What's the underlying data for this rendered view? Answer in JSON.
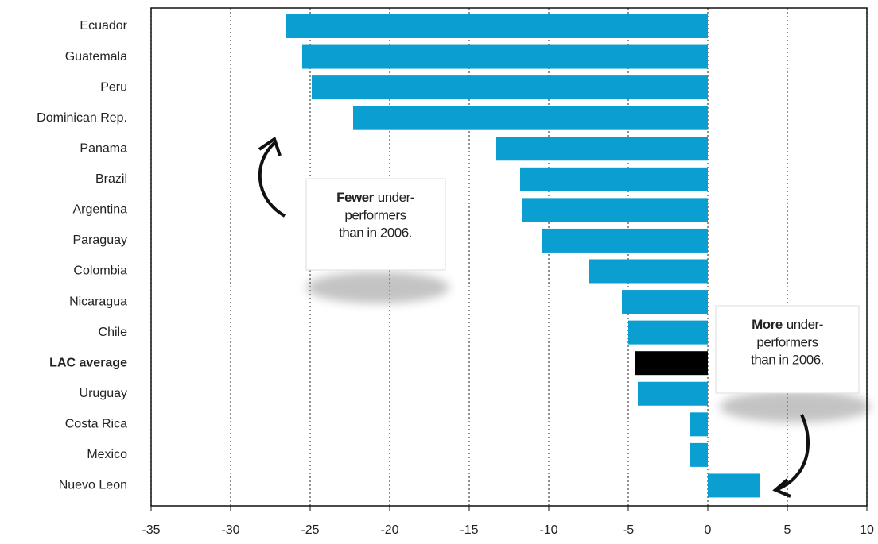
{
  "chart_data": {
    "type": "barh",
    "categories": [
      "Ecuador",
      "Guatemala",
      "Peru",
      "Dominican Rep.",
      "Panama",
      "Brazil",
      "Argentina",
      "Paraguay",
      "Colombia",
      "Nicaragua",
      "Chile",
      "LAC average",
      "Uruguay",
      "Costa Rica",
      "Mexico",
      "Nuevo Leon"
    ],
    "values": [
      -26.5,
      -25.5,
      -24.9,
      -22.3,
      -13.3,
      -11.8,
      -11.7,
      -10.4,
      -7.5,
      -5.4,
      -5.0,
      -4.6,
      -4.4,
      -1.1,
      -1.1,
      3.3
    ],
    "colors": [
      "#0b9fd1",
      "#0b9fd1",
      "#0b9fd1",
      "#0b9fd1",
      "#0b9fd1",
      "#0b9fd1",
      "#0b9fd1",
      "#0b9fd1",
      "#0b9fd1",
      "#0b9fd1",
      "#0b9fd1",
      "#000000",
      "#0b9fd1",
      "#0b9fd1",
      "#0b9fd1",
      "#0b9fd1"
    ],
    "xlim": [
      -35,
      10
    ],
    "xticks": [
      -35,
      -30,
      -25,
      -20,
      -15,
      -10,
      -5,
      0,
      5,
      10
    ],
    "grid": true,
    "annotations": [
      {
        "bold": "Fewer",
        "lines": [
          "under-",
          "performers",
          "than in 2006."
        ]
      },
      {
        "bold": "More",
        "lines": [
          "under-",
          "performers",
          "than in 2006."
        ]
      }
    ]
  }
}
